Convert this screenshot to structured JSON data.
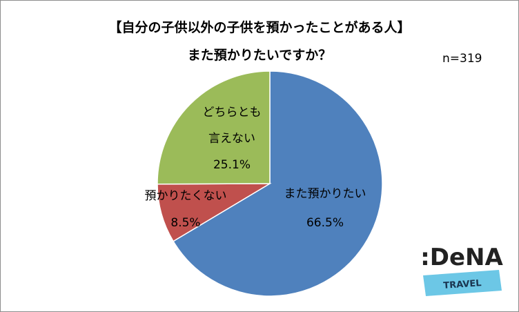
{
  "chart_data": {
    "type": "pie",
    "title": "【自分の子供以外の子供を預かったことがある人】",
    "subtitle": "また預かりたいですか？",
    "annotation": "n=319",
    "categories": [
      "また預かりたい",
      "預かりたくない",
      "どちらとも言えない"
    ],
    "values": [
      66.5,
      8.5,
      25.1
    ],
    "value_labels": [
      "66.5%",
      "8.5%",
      "25.1%"
    ],
    "colors": [
      "#4f81bd",
      "#c0504d",
      "#9bbb59"
    ]
  },
  "logo": {
    "name": ":DeNA",
    "sub": "TRAVEL"
  }
}
